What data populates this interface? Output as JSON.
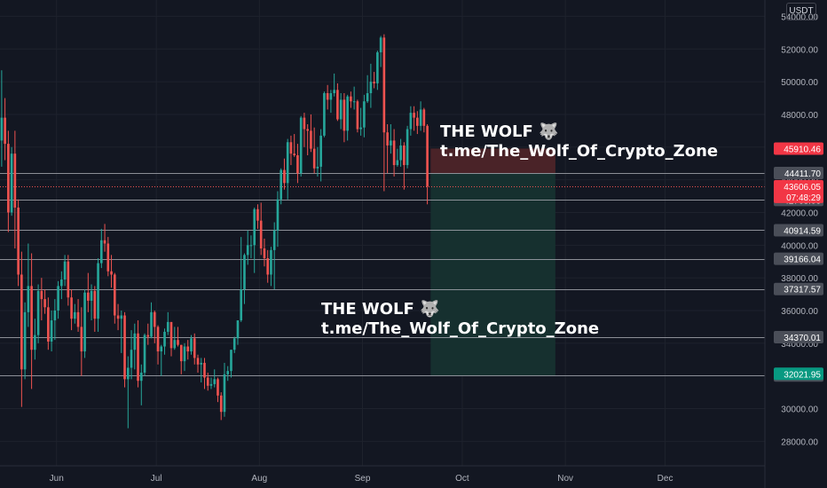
{
  "currency": "USDT",
  "annotations": [
    {
      "line1": "THE WOLF 🐺",
      "line2": "t.me/The_Wolf_Of_Crypto_Zone"
    },
    {
      "line1": "THE WOLF 🐺",
      "line2": "t.me/The_Wolf_Of_Crypto_Zone"
    }
  ],
  "colors": {
    "background": "#131722",
    "grid": "#1e222d",
    "up": "#26a69a",
    "down": "#ef5350",
    "text": "#b2b5be",
    "level_line": "#a0a3ab",
    "level_label_bg": "#4a4e58",
    "stop_zone": "#4a2328",
    "target_zone": "#16302f",
    "price_line": "#ef5350",
    "tag_price": "#f23645",
    "tag_target": "#089981"
  },
  "chart_data": {
    "type": "candlestick",
    "x_axis": {
      "labels": [
        "Jun",
        "Jul",
        "Aug",
        "Sep",
        "Oct",
        "Nov",
        "Dec"
      ]
    },
    "y_axis": {
      "ticks": [
        28000,
        30000,
        32000,
        34000,
        36000,
        38000,
        40000,
        42000,
        44000,
        46000,
        48000,
        50000,
        52000,
        54000
      ],
      "tick_labels": [
        "28000.00",
        "30000.00",
        "32000.00",
        "34000.00",
        "36000.00",
        "38000.00",
        "40000.00",
        "42000.00",
        "44000.00",
        "46000.00",
        "48000.00",
        "50000.00",
        "52000.00",
        "54000.00"
      ],
      "range": [
        26500,
        55000
      ]
    },
    "horizontal_levels": [
      {
        "value": 44411.7,
        "label": "44411.70"
      },
      {
        "value": 42763.06,
        "label": "42763.06"
      },
      {
        "value": 40914.59,
        "label": "40914.59"
      },
      {
        "value": 39166.04,
        "label": "39166.04"
      },
      {
        "value": 37317.57,
        "label": "37317.57"
      },
      {
        "value": 34370.01,
        "label": "34370.01"
      },
      {
        "value": 32021.95,
        "label": "32021.95"
      }
    ],
    "price_tags": [
      {
        "value": 45910.46,
        "label": "45910.46",
        "kind": "stop"
      },
      {
        "value": 43606.05,
        "label": "43606.05",
        "sub": "07:48:29",
        "kind": "current"
      },
      {
        "value": 32021.95,
        "label": "32021.95",
        "kind": "target"
      }
    ],
    "position": {
      "entry": 44411.7,
      "stop": 45910.46,
      "target": 32021.95,
      "start_date": "2021-09-21",
      "end_date": "2021-10-29"
    },
    "current_price": 43606.05,
    "date_range": [
      "2021-05-15",
      "2021-12-31"
    ],
    "ohlc": [
      [
        "2021-05-15",
        46400,
        50700,
        44800,
        47800
      ],
      [
        "2021-05-16",
        47800,
        49000,
        45200,
        46200
      ],
      [
        "2021-05-17",
        46200,
        47000,
        40800,
        42000
      ],
      [
        "2021-05-18",
        42000,
        46000,
        41800,
        45600
      ],
      [
        "2021-05-19",
        45600,
        47000,
        39800,
        42300
      ],
      [
        "2021-05-20",
        42300,
        42800,
        37500,
        38200
      ],
      [
        "2021-05-21",
        38200,
        39600,
        30100,
        32400
      ],
      [
        "2021-05-22",
        32400,
        36500,
        31800,
        35900
      ],
      [
        "2021-05-23",
        35900,
        40100,
        35000,
        37500
      ],
      [
        "2021-05-24",
        37500,
        39500,
        31200,
        33600
      ],
      [
        "2021-05-25",
        33600,
        35500,
        33000,
        34500
      ],
      [
        "2021-05-26",
        34500,
        37600,
        34000,
        37200
      ],
      [
        "2021-05-27",
        37200,
        38000,
        35400,
        36700
      ],
      [
        "2021-05-28",
        36700,
        37300,
        35800,
        36200
      ],
      [
        "2021-05-29",
        36200,
        36800,
        33600,
        34100
      ],
      [
        "2021-05-30",
        34100,
        36000,
        33500,
        35400
      ],
      [
        "2021-05-31",
        35400,
        36700,
        34200,
        36000
      ],
      [
        "2021-06-01",
        36000,
        37800,
        35500,
        37500
      ],
      [
        "2021-06-02",
        37500,
        38400,
        36700,
        37900
      ],
      [
        "2021-06-03",
        37900,
        39400,
        37500,
        39000
      ],
      [
        "2021-06-04",
        39000,
        39400,
        36300,
        36800
      ],
      [
        "2021-06-05",
        36800,
        37300,
        34800,
        35500
      ],
      [
        "2021-06-06",
        35500,
        36400,
        35200,
        35900
      ],
      [
        "2021-06-07",
        35900,
        36700,
        34700,
        35000
      ],
      [
        "2021-06-08",
        35000,
        36200,
        32000,
        33500
      ],
      [
        "2021-06-09",
        33500,
        37300,
        33100,
        37100
      ],
      [
        "2021-06-10",
        37100,
        38300,
        35900,
        36600
      ],
      [
        "2021-06-11",
        36600,
        37600,
        35400,
        37200
      ],
      [
        "2021-06-12",
        37200,
        37500,
        34700,
        35500
      ],
      [
        "2021-06-13",
        35500,
        39200,
        34700,
        38900
      ],
      [
        "2021-06-14",
        38900,
        41000,
        38600,
        40300
      ],
      [
        "2021-06-15",
        40300,
        41300,
        39600,
        40100
      ],
      [
        "2021-06-16",
        40100,
        40500,
        38100,
        38400
      ],
      [
        "2021-06-17",
        38400,
        39400,
        37400,
        38200
      ],
      [
        "2021-06-18",
        38200,
        38300,
        35200,
        35700
      ],
      [
        "2021-06-19",
        35700,
        36400,
        34800,
        35500
      ],
      [
        "2021-06-20",
        35500,
        36000,
        33400,
        35700
      ],
      [
        "2021-06-21",
        35700,
        35900,
        31300,
        31800
      ],
      [
        "2021-06-22",
        31800,
        33200,
        28800,
        32500
      ],
      [
        "2021-06-23",
        32500,
        34800,
        31800,
        33600
      ],
      [
        "2021-06-24",
        33600,
        35200,
        32400,
        34600
      ],
      [
        "2021-06-25",
        34600,
        35400,
        31300,
        31700
      ],
      [
        "2021-06-26",
        31700,
        32700,
        30200,
        32200
      ],
      [
        "2021-06-27",
        32200,
        34600,
        32000,
        34500
      ],
      [
        "2021-06-28",
        34500,
        35200,
        33900,
        34400
      ],
      [
        "2021-06-29",
        34400,
        36500,
        34300,
        35900
      ],
      [
        "2021-06-30",
        35900,
        36000,
        34000,
        35000
      ],
      [
        "2021-07-01",
        35000,
        35100,
        32700,
        33500
      ],
      [
        "2021-07-02",
        33500,
        33900,
        32000,
        33800
      ],
      [
        "2021-07-03",
        33800,
        34900,
        33300,
        34700
      ],
      [
        "2021-07-04",
        34700,
        35900,
        34500,
        35300
      ],
      [
        "2021-07-05",
        35300,
        35300,
        33200,
        33700
      ],
      [
        "2021-07-06",
        33700,
        35000,
        33600,
        34200
      ],
      [
        "2021-07-07",
        34200,
        35000,
        33800,
        33900
      ],
      [
        "2021-07-08",
        33900,
        33900,
        32100,
        32900
      ],
      [
        "2021-07-09",
        32900,
        34000,
        32300,
        33800
      ],
      [
        "2021-07-10",
        33800,
        34200,
        33000,
        33500
      ],
      [
        "2021-07-11",
        33500,
        34500,
        33300,
        34300
      ],
      [
        "2021-07-12",
        34300,
        34600,
        32700,
        33100
      ],
      [
        "2021-07-13",
        33100,
        33300,
        32200,
        32700
      ],
      [
        "2021-07-14",
        32700,
        33100,
        31600,
        32800
      ],
      [
        "2021-07-15",
        32800,
        33100,
        31200,
        31900
      ],
      [
        "2021-07-16",
        31900,
        32200,
        31100,
        31400
      ],
      [
        "2021-07-17",
        31400,
        31900,
        31200,
        31500
      ],
      [
        "2021-07-18",
        31500,
        32400,
        31300,
        31800
      ],
      [
        "2021-07-19",
        31800,
        31900,
        30400,
        30800
      ],
      [
        "2021-07-20",
        30800,
        31000,
        29300,
        29800
      ],
      [
        "2021-07-21",
        29800,
        32800,
        29500,
        32100
      ],
      [
        "2021-07-22",
        32100,
        32600,
        31700,
        32300
      ],
      [
        "2021-07-23",
        32300,
        33600,
        31900,
        33600
      ],
      [
        "2021-07-24",
        33600,
        34400,
        33400,
        34300
      ],
      [
        "2021-07-25",
        34300,
        35400,
        33900,
        35400
      ],
      [
        "2021-07-26",
        35400,
        40500,
        35300,
        37300
      ],
      [
        "2021-07-27",
        37300,
        39500,
        36400,
        39400
      ],
      [
        "2021-07-28",
        39400,
        40900,
        38800,
        40000
      ],
      [
        "2021-07-29",
        40000,
        40600,
        39200,
        40000
      ],
      [
        "2021-07-30",
        40000,
        42300,
        38300,
        42200
      ],
      [
        "2021-07-31",
        42200,
        42500,
        41000,
        41500
      ],
      [
        "2021-08-01",
        41500,
        42600,
        39400,
        39800
      ],
      [
        "2021-08-02",
        39800,
        40400,
        38700,
        39200
      ],
      [
        "2021-08-03",
        39200,
        39700,
        37700,
        38200
      ],
      [
        "2021-08-04",
        38200,
        39900,
        37500,
        39700
      ],
      [
        "2021-08-05",
        39700,
        41400,
        37300,
        40900
      ],
      [
        "2021-08-06",
        40900,
        43300,
        39900,
        42800
      ],
      [
        "2021-08-07",
        42800,
        44700,
        42500,
        44600
      ],
      [
        "2021-08-08",
        44600,
        45300,
        43400,
        43800
      ],
      [
        "2021-08-09",
        43800,
        46500,
        42800,
        46300
      ],
      [
        "2021-08-10",
        46300,
        46700,
        44900,
        45600
      ],
      [
        "2021-08-11",
        45600,
        46800,
        45400,
        45500
      ],
      [
        "2021-08-12",
        45500,
        46200,
        43800,
        44400
      ],
      [
        "2021-08-13",
        44400,
        47900,
        44200,
        47800
      ],
      [
        "2021-08-14",
        47800,
        48100,
        46000,
        47100
      ],
      [
        "2021-08-15",
        47100,
        47400,
        45500,
        47000
      ],
      [
        "2021-08-16",
        47000,
        48000,
        45700,
        45900
      ],
      [
        "2021-08-17",
        45900,
        47200,
        44400,
        44700
      ],
      [
        "2021-08-18",
        44700,
        46000,
        44200,
        44800
      ],
      [
        "2021-08-19",
        44800,
        47100,
        43900,
        46700
      ],
      [
        "2021-08-20",
        46700,
        49400,
        46600,
        49300
      ],
      [
        "2021-08-21",
        49300,
        49800,
        48300,
        48900
      ],
      [
        "2021-08-22",
        48900,
        49500,
        48100,
        49300
      ],
      [
        "2021-08-23",
        49300,
        50500,
        49100,
        49500
      ],
      [
        "2021-08-24",
        49500,
        49900,
        47600,
        47700
      ],
      [
        "2021-08-25",
        47700,
        49300,
        47100,
        48900
      ],
      [
        "2021-08-26",
        48900,
        49300,
        46300,
        47000
      ],
      [
        "2021-08-27",
        47000,
        49200,
        46400,
        49100
      ],
      [
        "2021-08-28",
        49100,
        49400,
        48400,
        48800
      ],
      [
        "2021-08-29",
        48800,
        49700,
        48300,
        48800
      ],
      [
        "2021-08-30",
        48800,
        48900,
        46900,
        47100
      ],
      [
        "2021-08-31",
        47100,
        48400,
        46700,
        47200
      ],
      [
        "2021-09-01",
        47200,
        49200,
        46600,
        48800
      ],
      [
        "2021-09-02",
        48800,
        50400,
        48700,
        49300
      ],
      [
        "2021-09-03",
        49300,
        51100,
        48400,
        50000
      ],
      [
        "2021-09-04",
        50000,
        50600,
        49600,
        49900
      ],
      [
        "2021-09-05",
        49900,
        51900,
        49500,
        51800
      ],
      [
        "2021-09-06",
        51800,
        52800,
        50900,
        52700
      ],
      [
        "2021-09-07",
        52700,
        52900,
        43300,
        46900
      ],
      [
        "2021-09-08",
        46900,
        47400,
        44400,
        46100
      ],
      [
        "2021-09-09",
        46100,
        47400,
        45600,
        46400
      ],
      [
        "2021-09-10",
        46400,
        47100,
        44200,
        44900
      ],
      [
        "2021-09-11",
        44900,
        45900,
        44800,
        45200
      ],
      [
        "2021-09-12",
        45200,
        46500,
        44800,
        46100
      ],
      [
        "2021-09-13",
        46100,
        46300,
        43400,
        44900
      ],
      [
        "2021-09-14",
        44900,
        47300,
        44700,
        47100
      ],
      [
        "2021-09-15",
        47100,
        48500,
        46700,
        48100
      ],
      [
        "2021-09-16",
        48100,
        48500,
        47000,
        47800
      ],
      [
        "2021-09-17",
        47800,
        48200,
        46800,
        47300
      ],
      [
        "2021-09-18",
        47300,
        48800,
        47000,
        48300
      ],
      [
        "2021-09-19",
        48300,
        48400,
        46900,
        47300
      ],
      [
        "2021-09-20",
        47300,
        47400,
        42500,
        43600
      ]
    ]
  }
}
